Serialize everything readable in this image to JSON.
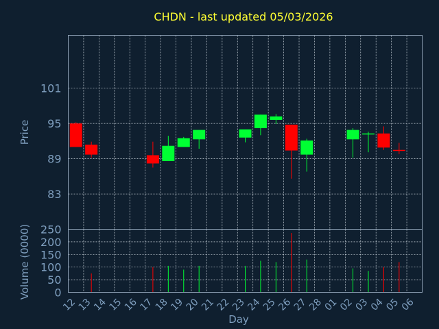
{
  "chart_data": {
    "type": "candlestick",
    "title": "CHDN - last updated 05/03/2026",
    "xlabel": "Day",
    "price": {
      "ylabel": "Price",
      "ylim": [
        77,
        110
      ],
      "ticks": [
        83,
        89,
        95,
        101
      ]
    },
    "volume": {
      "ylabel": "Volume (0000)",
      "ylim": [
        0,
        250
      ],
      "ticks": [
        0,
        50,
        100,
        150,
        200,
        250
      ]
    },
    "grid": true,
    "up_color": "#00ff33",
    "down_color": "#ff0000",
    "x_ticks": [
      "12",
      "13",
      "14",
      "15",
      "16",
      "17",
      "18",
      "19",
      "20",
      "21",
      "22",
      "23",
      "24",
      "25",
      "26",
      "27",
      "28",
      "01",
      "02",
      "03",
      "04",
      "05",
      "06"
    ],
    "candles": [
      {
        "i": 0,
        "open": 95.0,
        "high": 95.2,
        "low": 91.0,
        "close": 91.0,
        "volume": 0
      },
      {
        "i": 1,
        "open": 91.4,
        "high": 91.9,
        "low": 89.2,
        "close": 89.7,
        "volume": 75
      },
      {
        "i": 5,
        "open": 89.6,
        "high": 91.9,
        "low": 87.5,
        "close": 88.2,
        "volume": 100
      },
      {
        "i": 6,
        "open": 88.6,
        "high": 92.9,
        "low": 88.6,
        "close": 91.2,
        "volume": 105
      },
      {
        "i": 7,
        "open": 91.0,
        "high": 92.7,
        "low": 91.0,
        "close": 92.5,
        "volume": 90
      },
      {
        "i": 8,
        "open": 92.3,
        "high": 93.9,
        "low": 90.7,
        "close": 93.9,
        "volume": 105
      },
      {
        "i": 11,
        "open": 92.6,
        "high": 93.9,
        "low": 91.8,
        "close": 94.0,
        "volume": 105
      },
      {
        "i": 12,
        "open": 94.2,
        "high": 96.5,
        "low": 93.0,
        "close": 96.5,
        "volume": 125
      },
      {
        "i": 13,
        "open": 95.6,
        "high": 96.6,
        "low": 94.9,
        "close": 96.2,
        "volume": 120
      },
      {
        "i": 14,
        "open": 94.8,
        "high": 94.8,
        "low": 85.6,
        "close": 90.4,
        "volume": 235
      },
      {
        "i": 15,
        "open": 89.7,
        "high": 92.4,
        "low": 86.8,
        "close": 92.1,
        "volume": 130
      },
      {
        "i": 18,
        "open": 92.3,
        "high": 94.2,
        "low": 89.2,
        "close": 93.9,
        "volume": 95
      },
      {
        "i": 19,
        "open": 93.2,
        "high": 93.6,
        "low": 90.1,
        "close": 93.3,
        "volume": 85
      },
      {
        "i": 20,
        "open": 93.3,
        "high": 94.5,
        "low": 90.5,
        "close": 90.9,
        "volume": 100
      },
      {
        "i": 21,
        "open": 90.5,
        "high": 91.7,
        "low": 89.8,
        "close": 90.4,
        "volume": 120
      }
    ]
  }
}
